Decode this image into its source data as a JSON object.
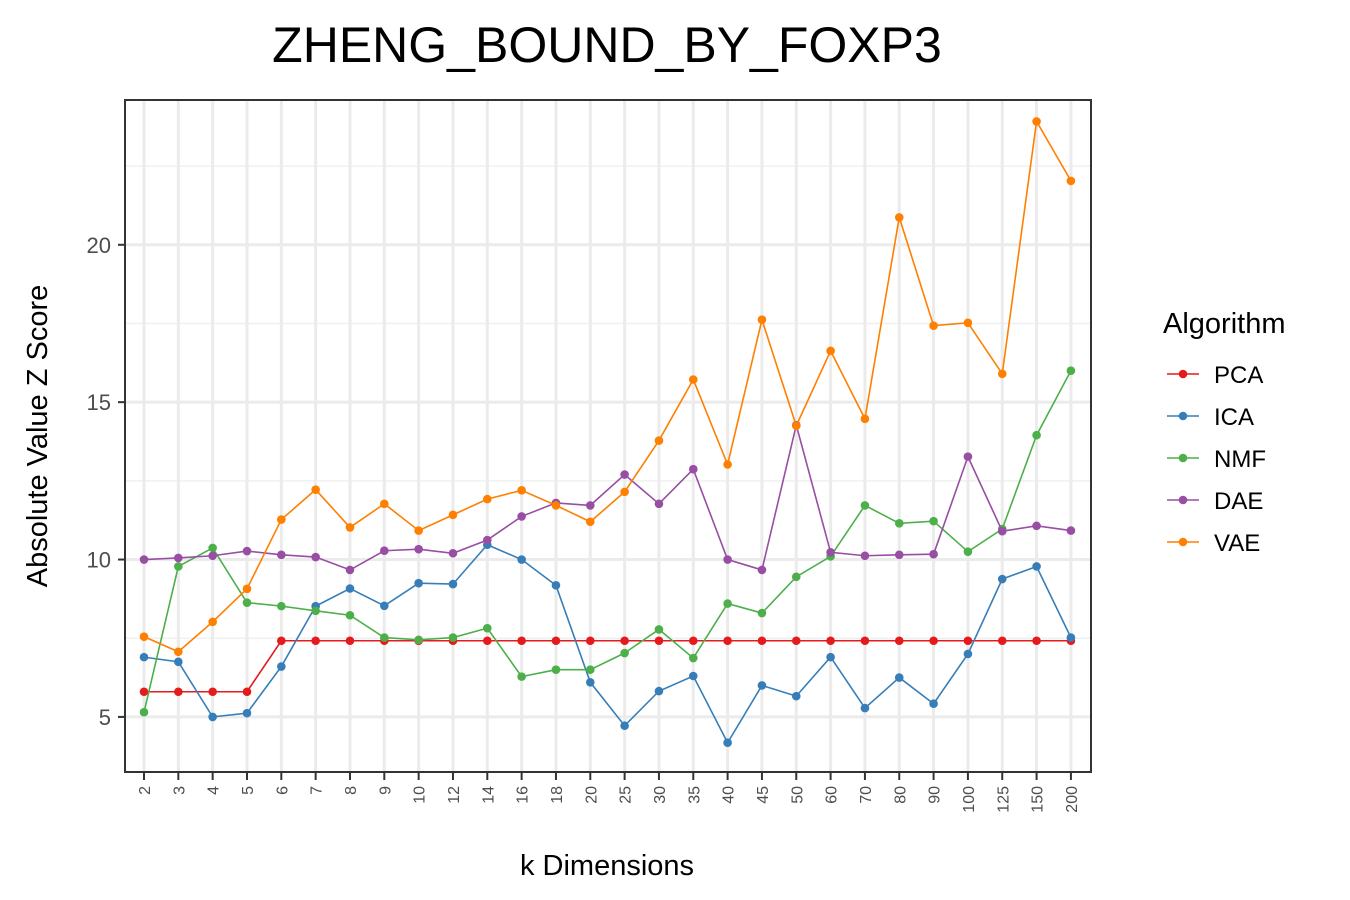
{
  "chart_data": {
    "type": "line",
    "title": "ZHENG_BOUND_BY_FOXP3",
    "xlabel": "k Dimensions",
    "ylabel": "Absolute Value Z Score",
    "categories": [
      "2",
      "3",
      "4",
      "5",
      "6",
      "7",
      "8",
      "9",
      "10",
      "12",
      "14",
      "16",
      "18",
      "20",
      "25",
      "30",
      "35",
      "40",
      "45",
      "50",
      "60",
      "70",
      "80",
      "90",
      "100",
      "125",
      "150",
      "200"
    ],
    "yticks": [
      5,
      10,
      15,
      20
    ],
    "ylim": [
      3.25,
      24.6
    ],
    "grid": true,
    "legend": {
      "title": "Algorithm",
      "placement": "right"
    },
    "series": [
      {
        "name": "PCA",
        "color": "#E41A1C",
        "values": [
          5.8,
          5.8,
          5.8,
          5.8,
          7.42,
          7.42,
          7.42,
          7.42,
          7.42,
          7.42,
          7.42,
          7.42,
          7.42,
          7.42,
          7.42,
          7.42,
          7.42,
          7.42,
          7.42,
          7.42,
          7.42,
          7.42,
          7.42,
          7.42,
          7.42,
          7.42,
          7.42,
          7.42
        ]
      },
      {
        "name": "ICA",
        "color": "#377EB8",
        "values": [
          6.9,
          6.75,
          5.0,
          5.12,
          6.6,
          8.52,
          9.08,
          8.53,
          9.25,
          9.22,
          10.47,
          10.0,
          9.18,
          6.1,
          4.72,
          5.82,
          6.3,
          4.18,
          6.0,
          5.66,
          6.9,
          5.28,
          6.25,
          5.42,
          7.0,
          9.38,
          9.78,
          7.52
        ]
      },
      {
        "name": "NMF",
        "color": "#4DAF4A",
        "values": [
          5.15,
          9.78,
          10.37,
          8.63,
          8.52,
          8.37,
          8.23,
          7.52,
          7.45,
          7.52,
          7.82,
          6.28,
          6.5,
          6.5,
          7.03,
          7.78,
          6.87,
          8.6,
          8.3,
          9.45,
          10.1,
          11.72,
          11.15,
          11.22,
          10.25,
          10.97,
          13.95,
          16.0
        ]
      },
      {
        "name": "DAE",
        "color": "#984EA3",
        "values": [
          10.0,
          10.05,
          10.12,
          10.27,
          10.15,
          10.08,
          9.67,
          10.28,
          10.33,
          10.2,
          10.62,
          11.37,
          11.8,
          11.72,
          12.7,
          11.77,
          12.87,
          10.0,
          9.67,
          14.27,
          10.23,
          10.12,
          10.15,
          10.17,
          13.27,
          10.9,
          11.07,
          10.92
        ]
      },
      {
        "name": "VAE",
        "color": "#FF7F00",
        "values": [
          7.55,
          7.07,
          8.02,
          9.07,
          11.27,
          12.22,
          11.02,
          11.77,
          10.92,
          11.42,
          11.92,
          12.2,
          11.72,
          11.2,
          12.15,
          13.78,
          15.72,
          13.02,
          17.62,
          14.25,
          16.63,
          14.47,
          20.87,
          17.43,
          17.52,
          15.9,
          23.92,
          22.03
        ]
      }
    ]
  }
}
